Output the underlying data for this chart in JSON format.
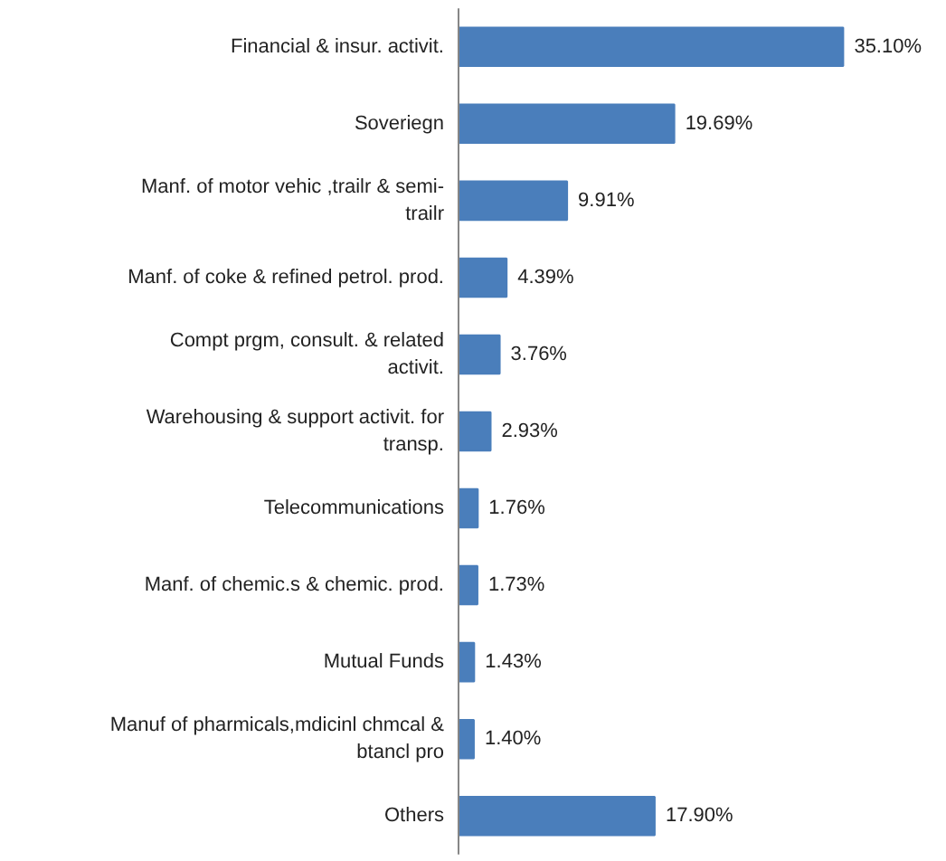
{
  "chart_data": {
    "type": "bar",
    "orientation": "horizontal",
    "categories": [
      "Financial & insur. activit.",
      "Soveriegn",
      "Manf. of motor vehic ,trailr & semi-trailr",
      "Manf. of coke & refined petrol. prod.",
      "Compt prgm, consult. & related activit.",
      "Warehousing & support activit. for transp.",
      "Telecommunications",
      "Manf. of chemic.s & chemic. prod.",
      "Mutual Funds",
      "Manuf of pharmicals,mdicinl chmcal & btancl pro",
      "Others"
    ],
    "values": [
      35.1,
      19.69,
      9.91,
      4.39,
      3.76,
      2.93,
      1.76,
      1.73,
      1.43,
      1.4,
      17.9
    ],
    "color": "#4a7ebb",
    "value_labels": [
      "35.10%",
      "19.69%",
      "9.91%",
      "4.39%",
      "3.76%",
      "2.93%",
      "1.76%",
      "1.73%",
      "1.43%",
      "1.40%",
      "17.90%"
    ],
    "grid": false
  }
}
